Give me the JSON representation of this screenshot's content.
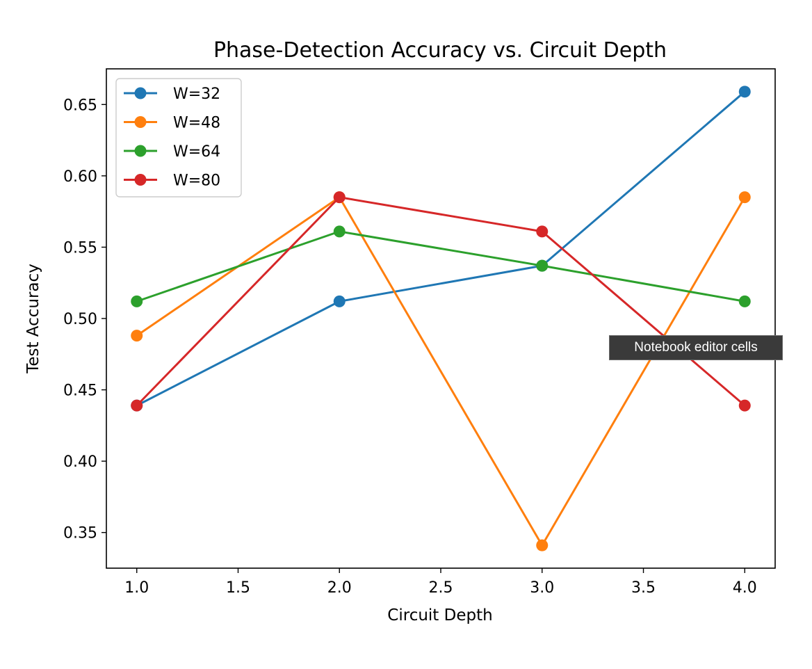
{
  "chart_data": {
    "type": "line",
    "title": "Phase-Detection Accuracy vs. Circuit Depth",
    "xlabel": "Circuit Depth",
    "ylabel": "Test Accuracy",
    "x": [
      1.0,
      2.0,
      3.0,
      4.0
    ],
    "xlim": [
      0.85,
      4.15
    ],
    "ylim": [
      0.325,
      0.675
    ],
    "xticks": [
      1.0,
      1.5,
      2.0,
      2.5,
      3.0,
      3.5,
      4.0
    ],
    "xtick_labels": [
      "1.0",
      "1.5",
      "2.0",
      "2.5",
      "3.0",
      "3.5",
      "4.0"
    ],
    "yticks": [
      0.35,
      0.4,
      0.45,
      0.5,
      0.55,
      0.6,
      0.65
    ],
    "ytick_labels": [
      "0.35",
      "0.40",
      "0.45",
      "0.50",
      "0.55",
      "0.60",
      "0.65"
    ],
    "grid": false,
    "legend_position": "top-left",
    "markers": "circle",
    "series": [
      {
        "name": "W=32",
        "color": "#1f77b4",
        "values": [
          0.439,
          0.512,
          0.537,
          0.659
        ]
      },
      {
        "name": "W=48",
        "color": "#ff7f0e",
        "values": [
          0.488,
          0.585,
          0.341,
          0.585
        ]
      },
      {
        "name": "W=64",
        "color": "#2ca02c",
        "values": [
          0.512,
          0.561,
          0.537,
          0.512
        ]
      },
      {
        "name": "W=80",
        "color": "#d62728",
        "values": [
          0.439,
          0.585,
          0.561,
          0.439
        ]
      }
    ]
  },
  "tooltip": {
    "text": "Notebook editor cells"
  }
}
